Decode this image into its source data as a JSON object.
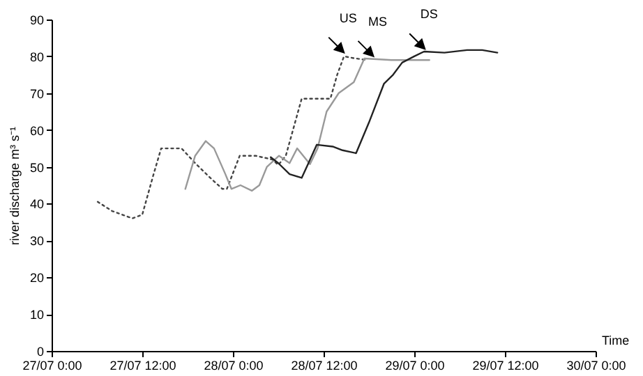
{
  "chart_data": {
    "type": "line",
    "ylabel": "river discharge m³ s⁻¹",
    "xlabel": "Time",
    "xlim": [
      "--07-27T00:00",
      "--07-30T00:00"
    ],
    "xticks": [
      {
        "value": "--07-27T00:00",
        "label": "27/07 0:00"
      },
      {
        "value": "--07-27T12:00",
        "label": "27/07 12:00"
      },
      {
        "value": "--07-28T00:00",
        "label": "28/07 0:00"
      },
      {
        "value": "--07-28T12:00",
        "label": "28/07 12:00"
      },
      {
        "value": "--07-29T00:00",
        "label": "29/07 0:00"
      },
      {
        "value": "--07-29T12:00",
        "label": "29/07 12:00"
      },
      {
        "value": "--07-30T00:00",
        "label": "30/07 0:00"
      }
    ],
    "ylim": [
      0,
      90
    ],
    "yticks": [
      0,
      10,
      20,
      30,
      40,
      50,
      60,
      70,
      80,
      90
    ],
    "grid": false,
    "marker": "none",
    "series": [
      {
        "color": "#444444",
        "line_style": "dotted",
        "x": [
          "--07-27T06:06",
          "--07-27T08:00",
          "--07-27T10:42",
          "--07-27T12:00",
          "--07-27T13:30",
          "--07-27T14:30",
          "--07-27T17:12",
          "--07-27T19:00",
          "--07-27T21:00",
          "--07-27T22:36",
          "--07-27T23:12",
          "--07-28T00:54",
          "--07-28T03:00",
          "--07-28T05:12",
          "--07-28T06:00",
          "--07-28T07:00",
          "--07-28T09:06",
          "--07-28T12:54",
          "--07-28T13:48",
          "--07-28T14:42",
          "--07-28T16:00",
          "--07-28T17:42"
        ],
        "values": [
          40.5,
          38,
          36,
          37,
          48,
          55,
          55,
          51,
          47,
          44,
          44,
          53,
          53,
          52,
          50.5,
          53,
          68.5,
          68.5,
          75,
          80,
          79.5,
          79
        ]
      },
      {
        "color": "#999999",
        "line_style": "solid",
        "x": [
          "--07-27T17:42",
          "--07-27T19:00",
          "--07-27T20:24",
          "--07-27T21:30",
          "--07-27T23:00",
          "--07-27T23:48",
          "--07-28T01:00",
          "--07-28T02:30",
          "--07-28T03:30",
          "--07-28T04:30",
          "--07-28T06:06",
          "--07-28T07:30",
          "--07-28T08:30",
          "--07-28T10:12",
          "--07-28T11:12",
          "--07-28T12:24",
          "--07-28T14:00",
          "--07-28T16:00",
          "--07-28T17:24",
          "--07-28T21:00",
          "--07-29T02:00"
        ],
        "values": [
          44,
          53,
          57,
          55,
          48,
          44,
          45,
          43.5,
          45,
          50,
          53,
          51,
          55,
          50.7,
          55,
          65,
          70,
          73,
          79.4,
          79,
          79
        ]
      },
      {
        "color": "#222222",
        "line_style": "solid",
        "x": [
          "--07-28T05:00",
          "--07-28T06:00",
          "--07-28T07:30",
          "--07-28T09:06",
          "--07-28T10:00",
          "--07-28T11:06",
          "--07-28T13:12",
          "--07-28T14:30",
          "--07-28T16:18",
          "--07-28T18:00",
          "--07-28T20:00",
          "--07-28T21:12",
          "--07-28T22:24",
          "--07-29T00:00",
          "--07-29T01:18",
          "--07-29T04:00",
          "--07-29T07:00",
          "--07-29T09:00",
          "--07-29T11:00"
        ],
        "values": [
          52.6,
          51,
          48,
          47,
          51,
          56,
          55.5,
          54.5,
          53.7,
          62,
          72.6,
          75,
          78.3,
          80,
          81.3,
          81,
          81.7,
          81.7,
          81
        ]
      }
    ],
    "annotations": [
      {
        "text": "US",
        "x": "--07-28T14:42",
        "y": 81
      },
      {
        "text": "MS",
        "x": "--07-28T18:36",
        "y": 80
      },
      {
        "text": "DS",
        "x": "--07-29T01:24",
        "y": 82
      }
    ]
  }
}
